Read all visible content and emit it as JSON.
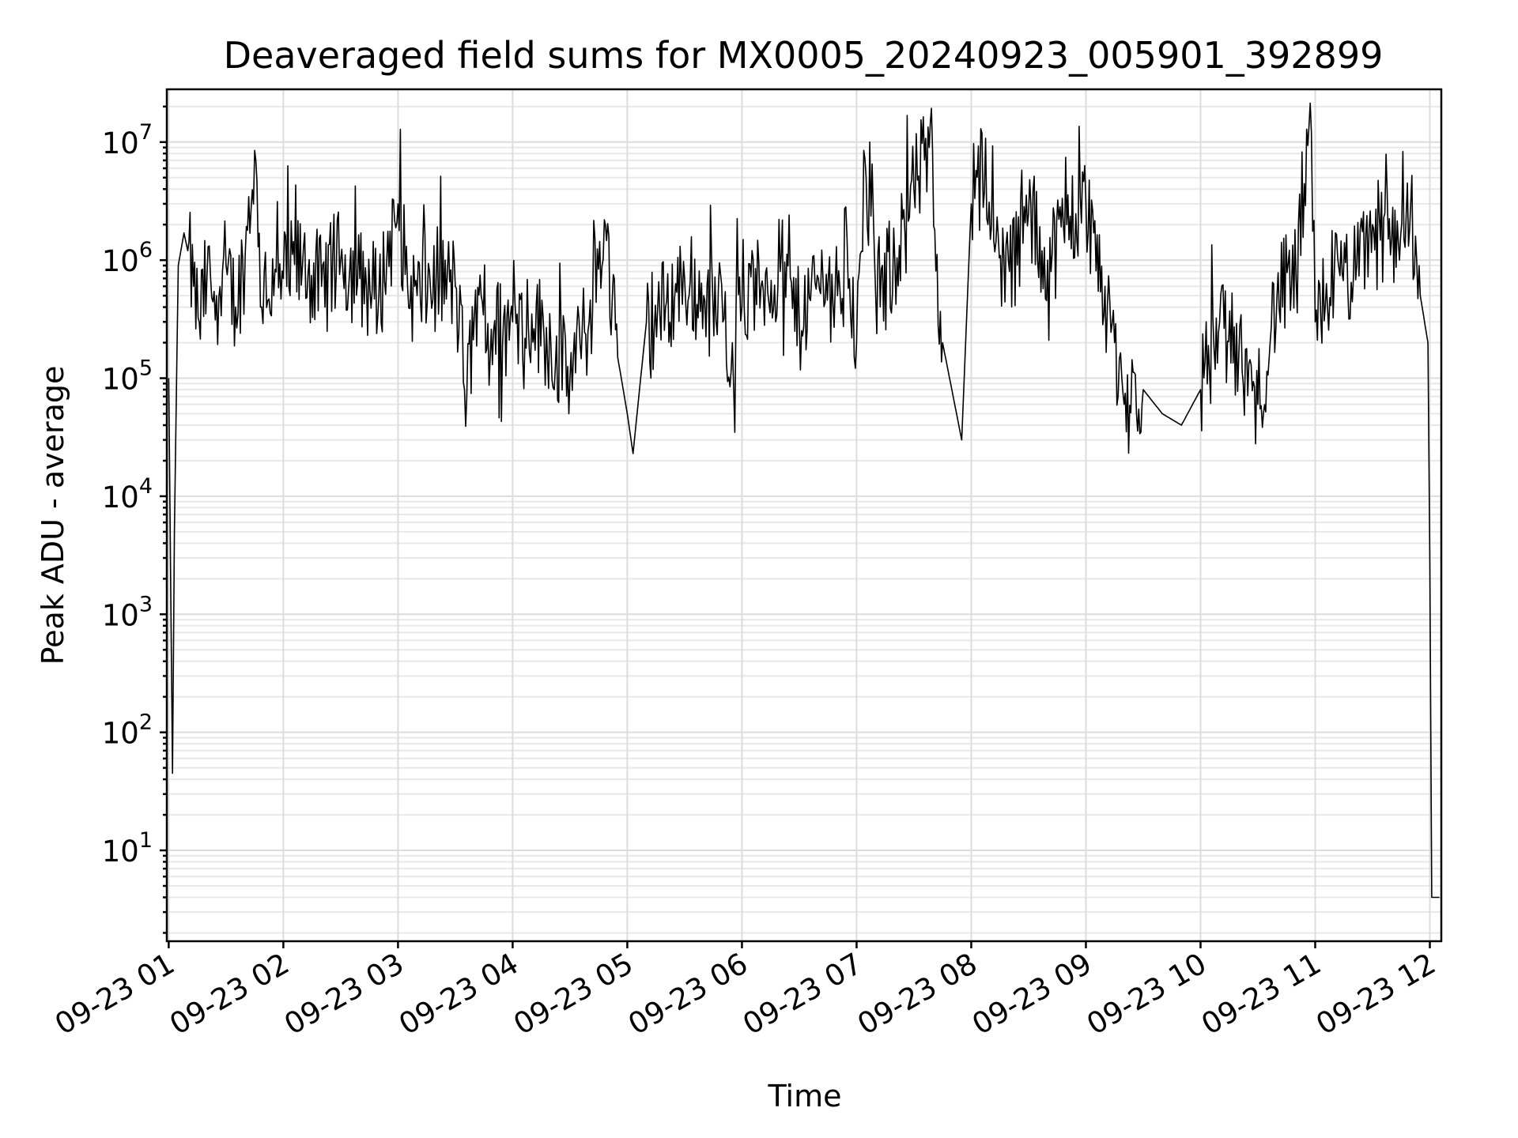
{
  "chart_data": {
    "type": "line",
    "title": "Deaveraged field sums for MX0005_20240923_005901_392899",
    "xlabel": "Time",
    "ylabel": "Peak ADU - average",
    "yscale": "log",
    "ylim": [
      1.7,
      28000000
    ],
    "xlim": [
      "2024-09-23 00:59:01",
      "2024-09-23 12:06:00"
    ],
    "x_ticks": [
      "09-23 01",
      "09-23 02",
      "09-23 03",
      "09-23 04",
      "09-23 05",
      "09-23 06",
      "09-23 07",
      "09-23 08",
      "09-23 09",
      "09-23 10",
      "09-23 11",
      "09-23 12"
    ],
    "y_ticks": [
      {
        "base": "10",
        "exp": "1",
        "value": 10
      },
      {
        "base": "10",
        "exp": "2",
        "value": 100
      },
      {
        "base": "10",
        "exp": "3",
        "value": 1000
      },
      {
        "base": "10",
        "exp": "4",
        "value": 10000
      },
      {
        "base": "10",
        "exp": "5",
        "value": 100000
      },
      {
        "base": "10",
        "exp": "6",
        "value": 1000000
      },
      {
        "base": "10",
        "exp": "7",
        "value": 10000000
      }
    ],
    "grid": true,
    "line_color": "#000000",
    "series": [
      {
        "x": [
          "09-23 01:00",
          "09-23 01:02",
          "09-23 01:03",
          "09-23 01:05",
          "09-23 01:08",
          "09-23 01:10",
          "09-23 01:13",
          "09-23 01:16",
          "09-23 01:20",
          "09-23 01:25",
          "09-23 01:30",
          "09-23 01:35",
          "09-23 01:40",
          "09-23 01:45",
          "09-23 01:48",
          "09-23 01:50",
          "09-23 01:55",
          "09-23 02:00",
          "09-23 02:10",
          "09-23 02:20",
          "09-23 02:30",
          "09-23 02:40",
          "09-23 02:50",
          "09-23 03:00",
          "09-23 03:05",
          "09-23 03:10",
          "09-23 03:20",
          "09-23 03:30",
          "09-23 03:36",
          "09-23 03:40",
          "09-23 03:50",
          "09-23 04:00",
          "09-23 04:10",
          "09-23 04:20",
          "09-23 04:30",
          "09-23 04:40",
          "09-23 04:48",
          "09-23 04:55",
          "09-23 05:00",
          "09-23 05:03",
          "09-23 05:10",
          "09-23 05:20",
          "09-23 05:30",
          "09-23 05:40",
          "09-23 05:50",
          "09-23 05:55",
          "09-23 06:00",
          "09-23 06:10",
          "09-23 06:20",
          "09-23 06:30",
          "09-23 06:40",
          "09-23 06:50",
          "09-23 06:55",
          "09-23 07:00",
          "09-23 07:05",
          "09-23 07:10",
          "09-23 07:20",
          "09-23 07:30",
          "09-23 07:38",
          "09-23 07:45",
          "09-23 07:55",
          "09-23 08:00",
          "09-23 08:05",
          "09-23 08:10",
          "09-23 08:20",
          "09-23 08:30",
          "09-23 08:40",
          "09-23 08:50",
          "09-23 09:00",
          "09-23 09:10",
          "09-23 09:15",
          "09-23 09:20",
          "09-23 09:30",
          "09-23 09:40",
          "09-23 09:50",
          "09-23 10:00",
          "09-23 10:10",
          "09-23 10:20",
          "09-23 10:30",
          "09-23 10:40",
          "09-23 10:50",
          "09-23 10:58",
          "09-23 11:00",
          "09-23 11:10",
          "09-23 11:20",
          "09-23 11:30",
          "09-23 11:40",
          "09-23 11:50",
          "09-23 11:55",
          "09-23 11:59",
          "09-23 12:00",
          "09-23 12:01",
          "09-23 12:05"
        ],
        "y": [
          100000,
          45,
          5000,
          900000,
          1700000,
          1200000,
          600000,
          300000,
          700000,
          500000,
          900000,
          400000,
          1100000,
          8500000,
          400000,
          800000,
          500000,
          700000,
          900000,
          600000,
          1000000,
          700000,
          500000,
          3000000,
          600000,
          500000,
          700000,
          600000,
          70000,
          350000,
          250000,
          300000,
          350000,
          200000,
          100000,
          300000,
          2200000,
          150000,
          50000,
          23000,
          300000,
          400000,
          700000,
          500000,
          300000,
          200000,
          400000,
          600000,
          800000,
          300000,
          700000,
          500000,
          1500000,
          200000,
          5000000,
          500000,
          1000000,
          4000000,
          9000000,
          200000,
          30000,
          3000000,
          13000000,
          1500000,
          800000,
          2500000,
          1000000,
          2000000,
          3000000,
          600000,
          200000,
          60000,
          80000,
          50000,
          40000,
          80000,
          300000,
          150000,
          60000,
          500000,
          700000,
          12000000,
          300000,
          800000,
          700000,
          2000000,
          1500000,
          3000000,
          500000,
          200000,
          2700,
          4,
          4
        ]
      }
    ]
  }
}
